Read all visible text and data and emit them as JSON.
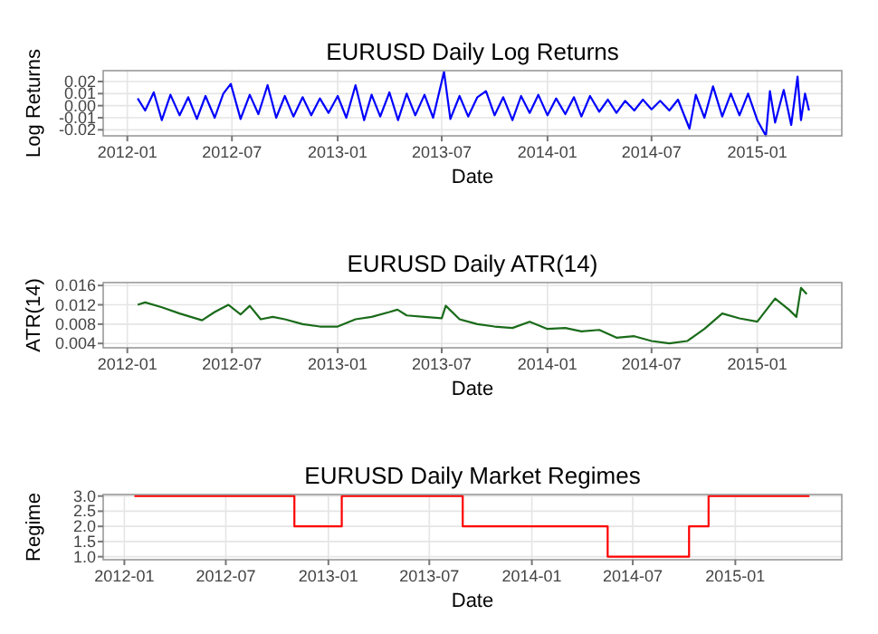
{
  "chart_data": [
    {
      "type": "line",
      "title": "EURUSD Daily Log Returns",
      "xlabel": "Date",
      "ylabel": "Log Returns",
      "grid": true,
      "xlim": [
        "2011-11-20",
        "2015-05-28"
      ],
      "xticks": [
        "2012-01",
        "2012-07",
        "2013-01",
        "2013-07",
        "2014-01",
        "2014-07",
        "2015-01"
      ],
      "ylim": [
        -0.025,
        0.029
      ],
      "yticks": [
        {
          "value": -0.02,
          "label": "-0.02"
        },
        {
          "value": -0.01,
          "label": "-0.01"
        },
        {
          "value": 0,
          "label": "0.00"
        },
        {
          "value": 0.01,
          "label": "0.01"
        },
        {
          "value": 0.02,
          "label": "0.02"
        }
      ],
      "x": [
        "2012-01-19",
        "2012-02-01",
        "2012-02-16",
        "2012-03-01",
        "2012-03-16",
        "2012-04-01",
        "2012-04-16",
        "2012-05-01",
        "2012-05-16",
        "2012-06-01",
        "2012-06-16",
        "2012-06-29",
        "2012-07-16",
        "2012-08-01",
        "2012-08-16",
        "2012-09-01",
        "2012-09-16",
        "2012-10-01",
        "2012-10-16",
        "2012-11-01",
        "2012-11-16",
        "2012-12-01",
        "2012-12-16",
        "2013-01-01",
        "2013-01-16",
        "2013-02-01",
        "2013-02-16",
        "2013-03-01",
        "2013-03-16",
        "2013-04-01",
        "2013-04-16",
        "2013-05-01",
        "2013-05-16",
        "2013-06-01",
        "2013-06-16",
        "2013-07-05",
        "2013-07-16",
        "2013-08-01",
        "2013-08-16",
        "2013-09-01",
        "2013-09-16",
        "2013-10-01",
        "2013-10-16",
        "2013-11-01",
        "2013-11-16",
        "2013-12-01",
        "2013-12-16",
        "2014-01-01",
        "2014-01-16",
        "2014-02-01",
        "2014-02-16",
        "2014-03-01",
        "2014-03-16",
        "2014-04-01",
        "2014-04-16",
        "2014-05-01",
        "2014-05-16",
        "2014-06-01",
        "2014-06-16",
        "2014-07-01",
        "2014-07-16",
        "2014-08-01",
        "2014-08-16",
        "2014-09-05",
        "2014-09-16",
        "2014-10-01",
        "2014-10-16",
        "2014-11-01",
        "2014-11-16",
        "2014-12-01",
        "2014-12-16",
        "2015-01-01",
        "2015-01-16",
        "2015-01-23",
        "2015-02-01",
        "2015-02-16",
        "2015-03-01",
        "2015-03-12",
        "2015-03-18",
        "2015-03-25",
        "2015-04-01"
      ],
      "series": [
        {
          "color": "#0000ff",
          "values": [
            0.006,
            -0.004,
            0.011,
            -0.012,
            0.009,
            -0.008,
            0.007,
            -0.011,
            0.008,
            -0.01,
            0.01,
            0.018,
            -0.011,
            0.009,
            -0.007,
            0.017,
            -0.01,
            0.008,
            -0.009,
            0.007,
            -0.008,
            0.006,
            -0.006,
            0.008,
            -0.01,
            0.017,
            -0.012,
            0.009,
            -0.009,
            0.011,
            -0.012,
            0.01,
            -0.008,
            0.009,
            -0.01,
            0.028,
            -0.011,
            0.008,
            -0.009,
            0.007,
            0.012,
            -0.008,
            0.007,
            -0.012,
            0.008,
            -0.006,
            0.009,
            -0.008,
            0.006,
            -0.007,
            0.007,
            -0.009,
            0.008,
            -0.005,
            0.005,
            -0.006,
            0.004,
            -0.004,
            0.005,
            -0.003,
            0.004,
            -0.004,
            0.005,
            -0.019,
            0.009,
            -0.01,
            0.016,
            -0.009,
            0.01,
            -0.008,
            0.01,
            -0.012,
            -0.025,
            0.012,
            -0.014,
            0.013,
            -0.016,
            0.024,
            -0.012,
            0.01,
            -0.004
          ]
        }
      ]
    },
    {
      "type": "line",
      "title": "EURUSD Daily ATR(14)",
      "xlabel": "Date",
      "ylabel": "ATR(14)",
      "grid": true,
      "xlim": [
        "2011-11-20",
        "2015-05-28"
      ],
      "xticks": [
        "2012-01",
        "2012-07",
        "2013-01",
        "2013-07",
        "2014-01",
        "2014-07",
        "2015-01"
      ],
      "ylim": [
        0.0031,
        0.0166
      ],
      "yticks": [
        0.004,
        0.008,
        0.012,
        0.016
      ],
      "x": [
        "2012-01-19",
        "2012-02-01",
        "2012-03-01",
        "2012-04-01",
        "2012-05-10",
        "2012-06-01",
        "2012-06-25",
        "2012-07-16",
        "2012-08-01",
        "2012-08-20",
        "2012-09-10",
        "2012-10-01",
        "2012-11-01",
        "2012-12-01",
        "2013-01-01",
        "2013-02-01",
        "2013-03-01",
        "2013-04-01",
        "2013-04-15",
        "2013-05-01",
        "2013-06-01",
        "2013-07-01",
        "2013-07-08",
        "2013-08-01",
        "2013-09-01",
        "2013-10-01",
        "2013-11-01",
        "2013-12-01",
        "2014-01-01",
        "2014-02-01",
        "2014-03-01",
        "2014-04-01",
        "2014-05-01",
        "2014-06-01",
        "2014-07-01",
        "2014-08-01",
        "2014-09-01",
        "2014-10-01",
        "2014-11-01",
        "2014-12-01",
        "2015-01-01",
        "2015-02-01",
        "2015-02-25",
        "2015-03-10",
        "2015-03-18",
        "2015-03-28"
      ],
      "series": [
        {
          "color": "#1a6b1a",
          "values": [
            0.012,
            0.0125,
            0.0115,
            0.0102,
            0.0088,
            0.0105,
            0.012,
            0.01,
            0.0118,
            0.009,
            0.0095,
            0.009,
            0.008,
            0.0075,
            0.0075,
            0.009,
            0.0095,
            0.0105,
            0.011,
            0.0098,
            0.0095,
            0.0092,
            0.0118,
            0.009,
            0.008,
            0.0075,
            0.0072,
            0.0085,
            0.007,
            0.0072,
            0.0065,
            0.0068,
            0.0052,
            0.0055,
            0.0045,
            0.004,
            0.0045,
            0.007,
            0.0102,
            0.0092,
            0.0085,
            0.0133,
            0.011,
            0.0095,
            0.0155,
            0.0142
          ]
        }
      ]
    },
    {
      "type": "step",
      "title": "EURUSD Daily Market Regimes",
      "xlabel": "Date",
      "ylabel": "Regime",
      "grid": true,
      "xlim": [
        "2011-11-24",
        "2015-07-11"
      ],
      "xticks": [
        "2012-01",
        "2012-07",
        "2013-01",
        "2013-07",
        "2014-01",
        "2014-07",
        "2015-01"
      ],
      "ylim": [
        0.9,
        3.05
      ],
      "yticks": [
        {
          "value": 1,
          "label": "1.0"
        },
        {
          "value": 1.5,
          "label": "1.5"
        },
        {
          "value": 2,
          "label": "2.0"
        },
        {
          "value": 2.5,
          "label": "2.5"
        },
        {
          "value": 3,
          "label": "3.0"
        }
      ],
      "x": [
        "2012-01-19",
        "2012-11-01",
        "2013-01-25",
        "2013-08-30",
        "2014-05-17",
        "2014-10-10",
        "2014-11-14",
        "2015-05-14"
      ],
      "series": [
        {
          "color": "#ff0000",
          "values": [
            3,
            2,
            3,
            2,
            1,
            2,
            3,
            3
          ]
        }
      ]
    }
  ]
}
